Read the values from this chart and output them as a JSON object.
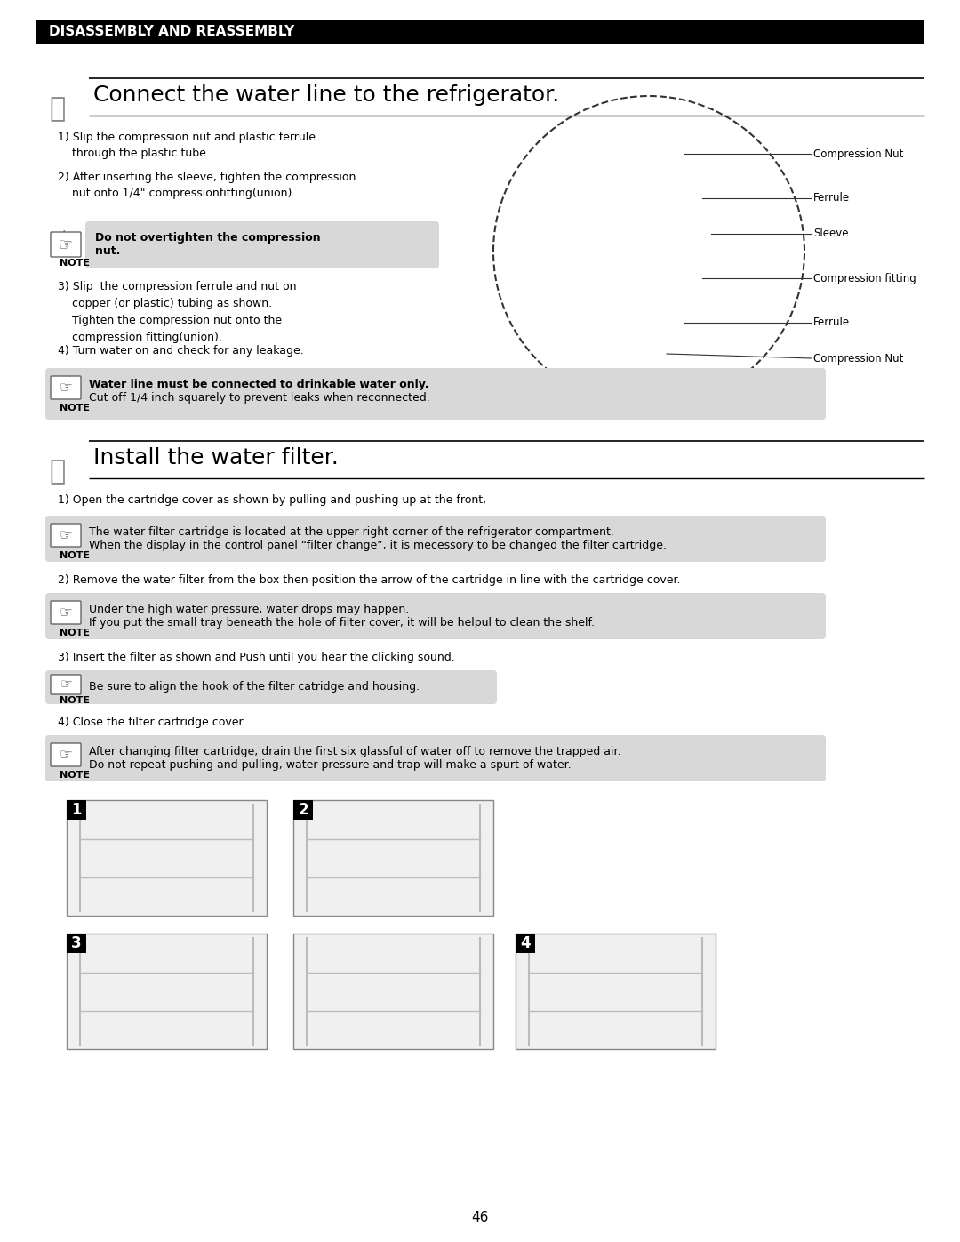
{
  "page_number": "46",
  "header_text": "DISASSEMBLY AND REASSEMBLY",
  "header_bg": "#000000",
  "header_text_color": "#ffffff",
  "section1_title": "Connect the water line to the refrigerator.",
  "section1_steps": [
    "1) Slip the compression nut and plastic ferrule\n    through the plastic tube.",
    "2) After inserting the sleeve, tighten the compression\n    nut onto 1/4\" compressionfitting(union).",
    "3) Slip  the compression ferrule and nut on\n    copper (or plastic) tubing as shown.\n    Tighten the compression nut onto the\n    compression fitting(union).",
    "4) Turn water on and check for any leakage."
  ],
  "note1_text": "Do not overtighten the compression\nnut.",
  "note1_bg": "#d8d8d8",
  "note2_line1": "Water line must be connected to drinkable water only.",
  "note2_line2": "Cut off 1/4 inch squarely to prevent leaks when reconnected.",
  "note2_bg": "#d8d8d8",
  "section2_title": "Install the water filter.",
  "section2_step1": "1) Open the cartridge cover as shown by pulling and pushing up at the front,",
  "note3_line1": "The water filter cartridge is located at the upper right corner of the refrigerator compartment.",
  "note3_line2": "When the display in the control panel “filter change”, it is mecessory to be changed the filter cartridge.",
  "note3_bg": "#d8d8d8",
  "section2_step2": "2) Remove the water filter from the box then position the arrow of the cartridge in line with the cartridge cover.",
  "note4_line1": "Under the high water pressure, water drops may happen.",
  "note4_line2": "If you put the small tray beneath the hole of filter cover, it will be helpul to clean the shelf.",
  "note4_bg": "#d8d8d8",
  "section2_step3": "3) Insert the filter as shown and Push until you hear the clicking sound.",
  "note5_text": "Be sure to align the hook of the filter catridge and housing.",
  "note5_bg": "#d8d8d8",
  "section2_step4": "4) Close the filter cartridge cover.",
  "note6_line1": "After changing filter cartridge, drain the first six glassful of water off to remove the trapped air.",
  "note6_line2": "Do not repeat pushing and pulling, water pressure and trap will make a spurt of water.",
  "note6_bg": "#d8d8d8",
  "diagram_labels": [
    "Compression Nut",
    "Ferrule",
    "Sleeve",
    "Compression fitting",
    "Ferrule",
    "Compression Nut"
  ],
  "bg_color": "#ffffff",
  "text_color": "#000000",
  "body_fontsize": 9,
  "title_fontsize": 18,
  "header_fontsize": 11
}
